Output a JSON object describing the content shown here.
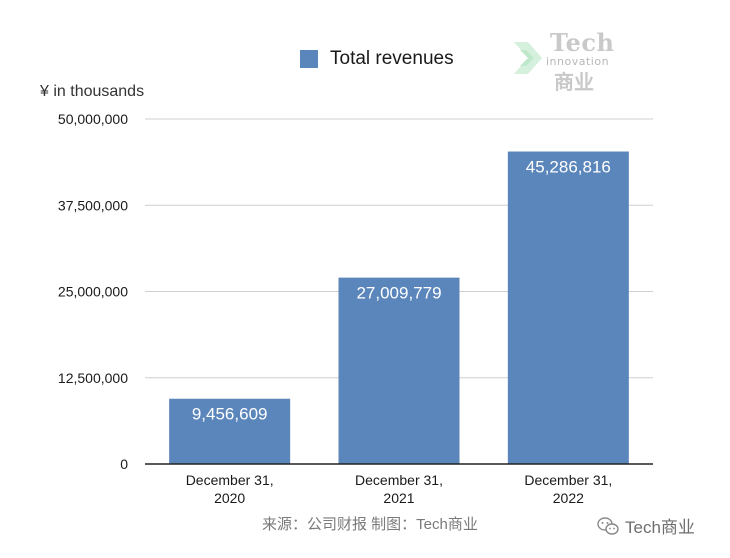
{
  "legend": {
    "label": "Total revenues",
    "color": "#5b86bb"
  },
  "unit_label": "¥  in thousands",
  "watermark": {
    "tech": "Tech",
    "innovation": "innovation",
    "cn": "商业",
    "icon": "chevron-arrow-icon"
  },
  "source": "来源：公司财报 制图：Tech商业",
  "brand": {
    "text": "Tech商业",
    "icon": "wechat-icon"
  },
  "chart_data": {
    "type": "bar",
    "categories": [
      [
        "December 31,",
        "2020"
      ],
      [
        "December 31,",
        "2021"
      ],
      [
        "December 31,",
        "2022"
      ]
    ],
    "series": [
      {
        "name": "Total revenues",
        "values": [
          9456609,
          27009779,
          45286816
        ],
        "labels": [
          "9,456,609",
          "27,009,779",
          "45,286,816"
        ]
      }
    ],
    "ylim": [
      0,
      50000000
    ],
    "yticks": [
      0,
      12500000,
      25000000,
      37500000,
      50000000
    ],
    "ytick_labels": [
      "0",
      "12,500,000",
      "25,000,000",
      "37,500,000",
      "50,000,000"
    ],
    "grid": true,
    "legend_position": "top"
  }
}
